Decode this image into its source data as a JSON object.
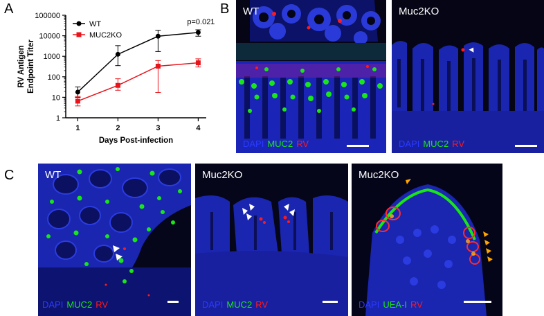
{
  "panel_letters": {
    "a": "A",
    "b": "B",
    "c": "C"
  },
  "chart_data": {
    "type": "line",
    "x": [
      1,
      2,
      3,
      4
    ],
    "xlabel": "Days Post-infection",
    "ylabel": "RV Antigen Endpoint Titer",
    "ylabel_line1": "RV Antigen",
    "ylabel_line2": "Endpoint Titer",
    "yscale": "log",
    "ylim": [
      1,
      100000
    ],
    "yticks": [
      "1",
      "10",
      "100",
      "1000",
      "10000",
      "100000"
    ],
    "xticks": [
      "1",
      "2",
      "3",
      "4"
    ],
    "annotation": "p=0.021",
    "legend": "top-left",
    "series": [
      {
        "name": "WT",
        "color": "#000000",
        "marker": "circle",
        "values": [
          18,
          1250,
          9500,
          14500
        ],
        "err_low": [
          10,
          350,
          1700,
          9500
        ],
        "err_high": [
          32,
          3300,
          18500,
          19500
        ]
      },
      {
        "name": "MUC2KO",
        "color": "#e8141b",
        "marker": "square",
        "values": [
          6.5,
          38,
          330,
          480
        ],
        "err_low": [
          3.8,
          22,
          17,
          300
        ],
        "err_high": [
          11,
          80,
          620,
          750
        ]
      }
    ]
  },
  "panels": {
    "b_wt": {
      "title": "WT",
      "legend": [
        "DAPI",
        "MUC2",
        "RV"
      ]
    },
    "b_ko": {
      "title": "Muc2KO",
      "legend": [
        "DAPI",
        "MUC2",
        "RV"
      ]
    },
    "c_wt": {
      "title": "WT",
      "legend": [
        "DAPI",
        "MUC2",
        "RV"
      ]
    },
    "c_ko1": {
      "title": "Muc2KO",
      "legend": [
        "DAPI",
        "MUC2",
        "RV"
      ]
    },
    "c_ko2": {
      "title": "Muc2KO",
      "legend": [
        "DAPI",
        "UEA-I",
        "RV"
      ]
    }
  },
  "colors": {
    "dapi": "#1f2ad6",
    "muc2": "#19e619",
    "rv": "#ff1a1a",
    "uea": "#19e619",
    "white_arrow": "#ffffff",
    "orange_arrow": "#ffa500"
  }
}
